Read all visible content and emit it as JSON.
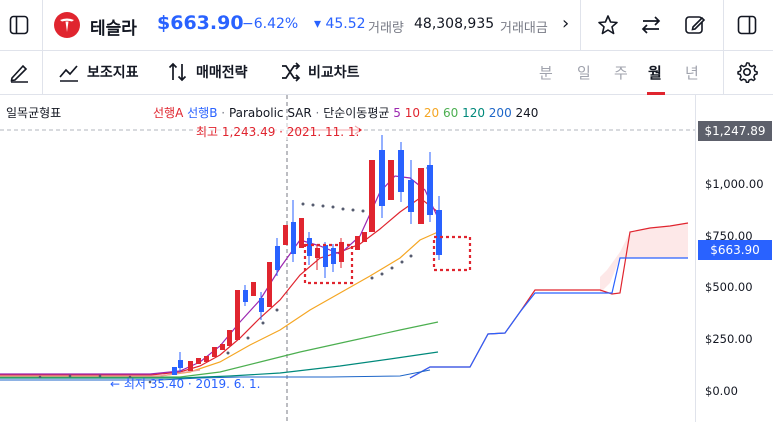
{
  "header": {
    "symbol_name": "테슬라",
    "price": "$663.90",
    "change_pct": "−6.42%",
    "change_abs": "▾ 45.52",
    "volume_label": "거래량",
    "volume_value": "48,308,935",
    "amount_label": "거래대금",
    "more_label": "›"
  },
  "toolbar": {
    "indicators_label": "보조지표",
    "strategy_label": "매매전략",
    "compare_label": "비교차트",
    "periods": [
      "분",
      "일",
      "주",
      "월",
      "년"
    ],
    "active_period": "월"
  },
  "chart": {
    "indicator_name": "일목균형표",
    "legend": {
      "leadA": "선행A",
      "leadB": "선행B",
      "dot1": "·",
      "psar": "Parabolic SAR",
      "dot2": "·",
      "ma_label": "단순이동평균",
      "ma5": "5",
      "ma10": "10",
      "ma20": "20",
      "ma60": "60",
      "ma120": "120",
      "ma200": "200",
      "ma240": "240"
    },
    "high_annotation": "최고 1,243.49 · 2021. 11. 1.",
    "low_annotation": "← 최저 35.40 · 2019. 6. 1.",
    "axis": [
      "$1,000.00",
      "$750.00",
      "$500.00",
      "$250.00",
      "$0.00"
    ],
    "high_tag": "$1,247.89",
    "last_tag": "$663.90",
    "colors": {
      "up": "#e0252f",
      "down": "#2962ff",
      "lead_a": "#e0252f",
      "lead_b": "#2962ff",
      "ma5": "#9c27b0",
      "ma10": "#e0252f",
      "ma20": "#f5a623",
      "ma60": "#4caf50",
      "ma120": "#00897b",
      "ma200": "#1e66c8",
      "ma240": "#131722",
      "psar": "#555b6e"
    }
  }
}
